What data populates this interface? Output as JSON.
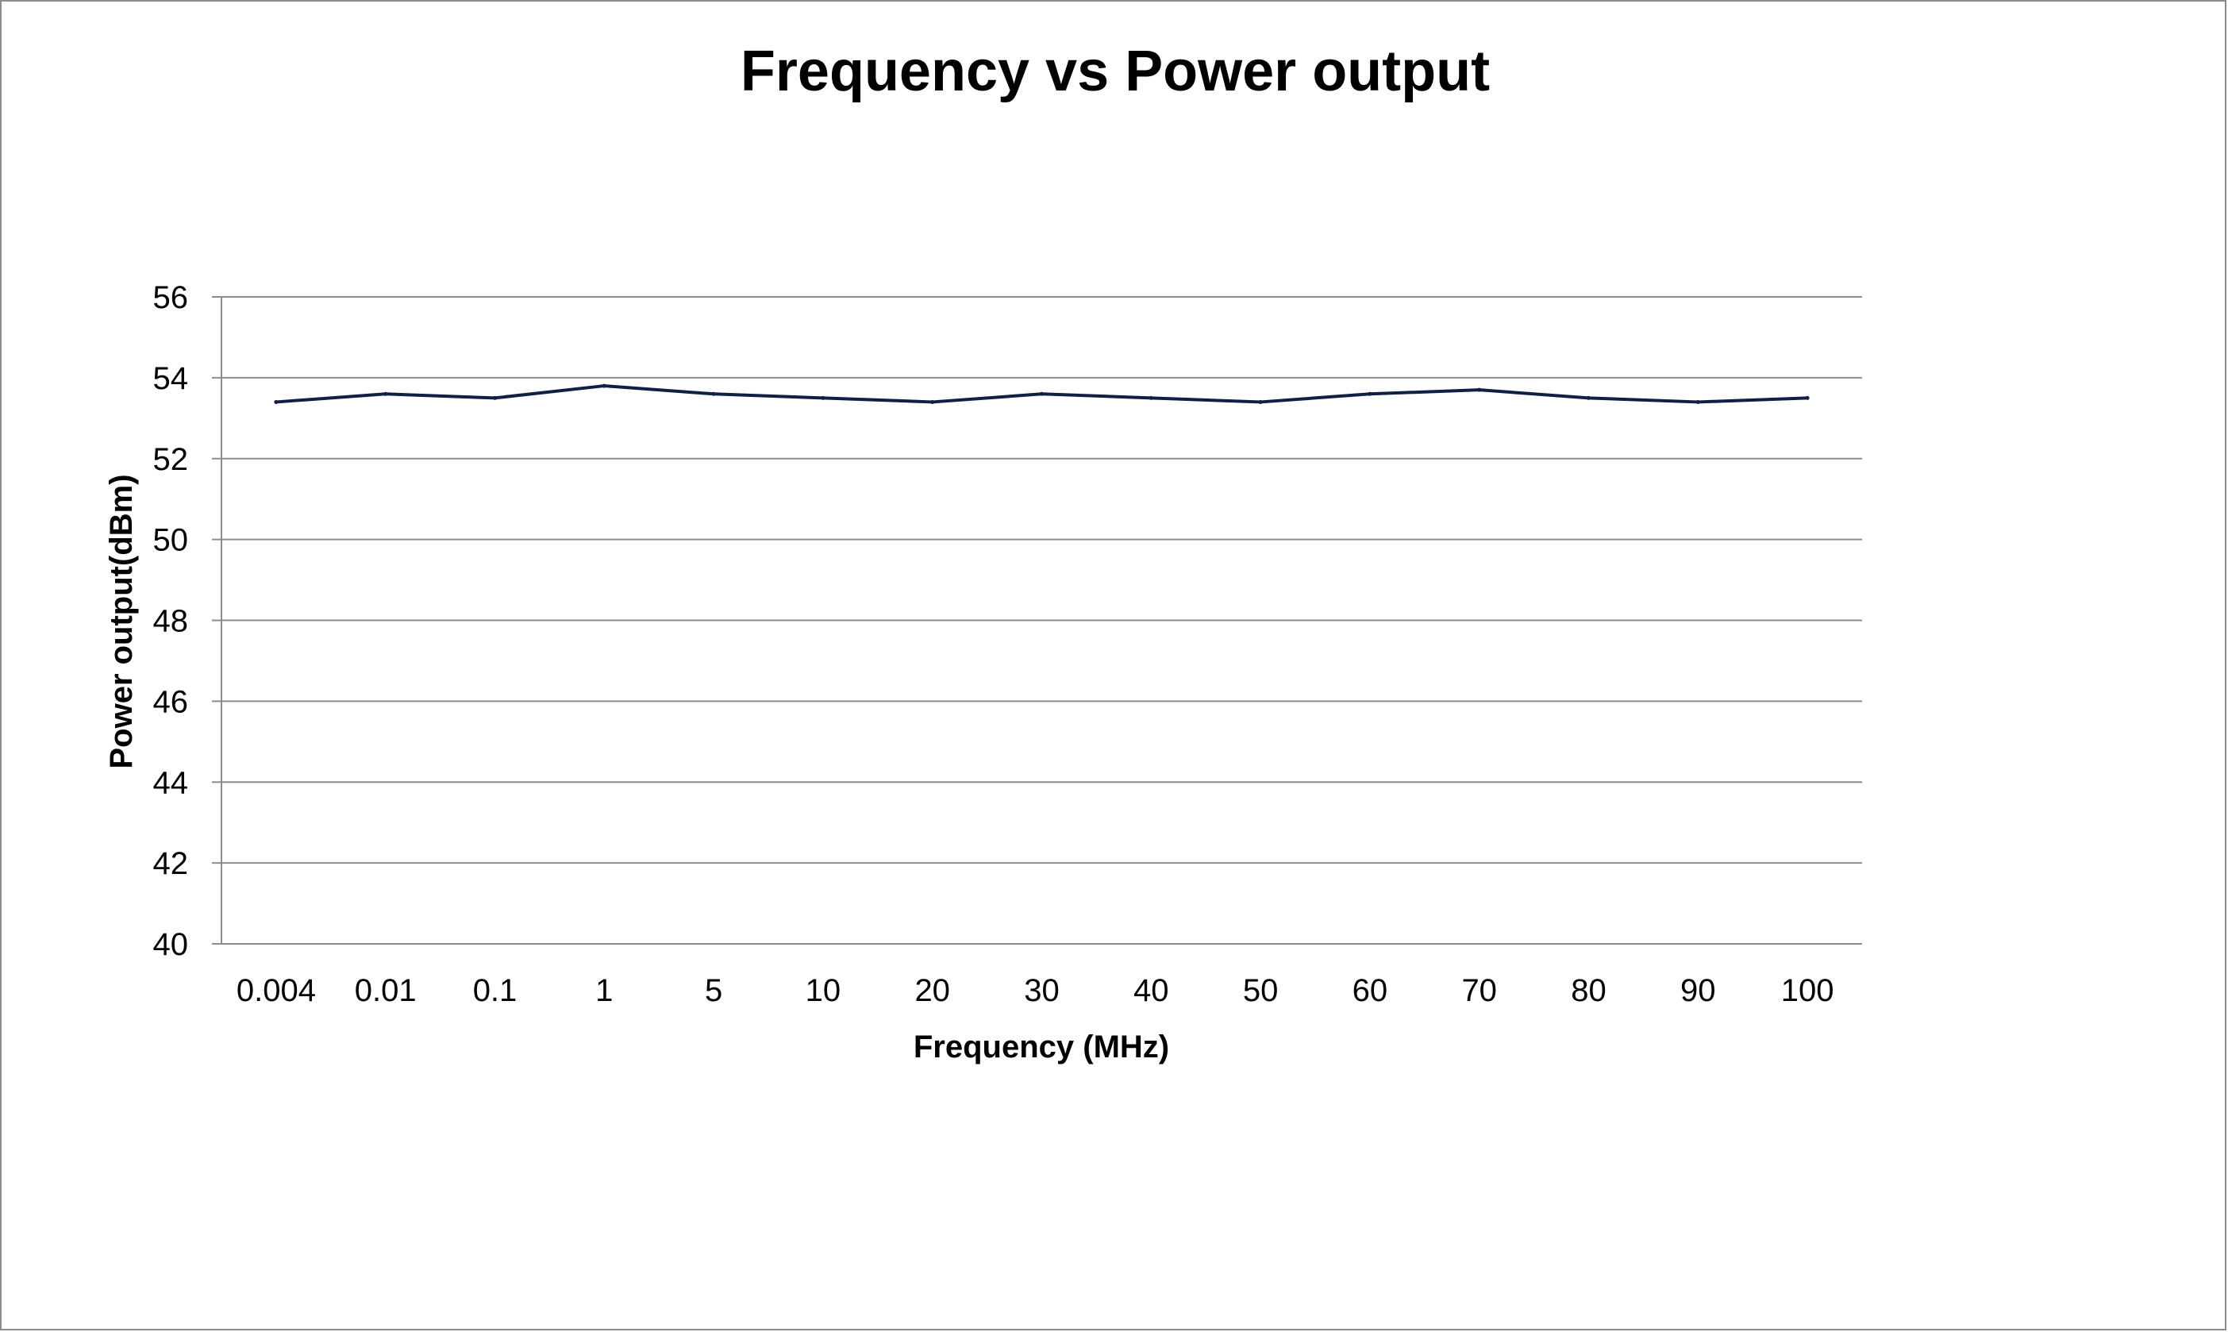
{
  "chart_data": {
    "type": "line",
    "title": "Frequency vs Power output",
    "xlabel": "Frequency (MHz)",
    "ylabel": "Power output(dBm)",
    "categories": [
      "0.004",
      "0.01",
      "0.1",
      "1",
      "5",
      "10",
      "20",
      "30",
      "40",
      "50",
      "60",
      "70",
      "80",
      "90",
      "100"
    ],
    "series": [
      {
        "values": [
          53.4,
          53.6,
          53.5,
          53.8,
          53.6,
          53.5,
          53.4,
          53.6,
          53.5,
          53.4,
          53.6,
          53.7,
          53.5,
          53.4,
          53.5
        ]
      }
    ],
    "ylim": [
      40,
      56
    ],
    "yticks": [
      40,
      42,
      44,
      46,
      48,
      50,
      52,
      54,
      56
    ],
    "grid": true,
    "legend": "none",
    "colors": {
      "line": "#0f1f45",
      "grid": "#8c8c8c",
      "axis": "#8c8c8c"
    }
  }
}
